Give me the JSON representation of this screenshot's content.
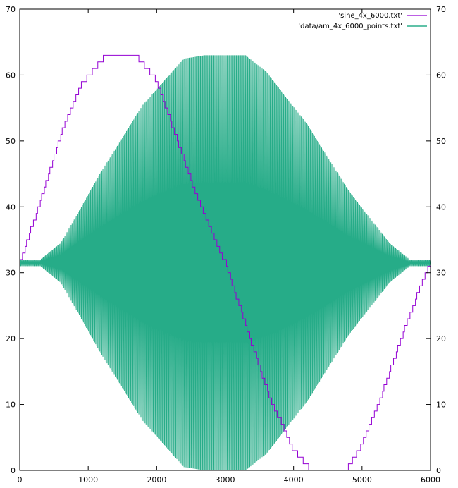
{
  "chart_data": {
    "type": "line",
    "title": "",
    "xlabel": "",
    "ylabel": "",
    "xlim": [
      0,
      6000
    ],
    "ylim": [
      0,
      70
    ],
    "x_ticks": [
      0,
      1000,
      2000,
      3000,
      4000,
      5000,
      6000
    ],
    "y_ticks": [
      0,
      10,
      20,
      30,
      40,
      50,
      60,
      70
    ],
    "y2_ticks": [
      0,
      10,
      20,
      30,
      40,
      50,
      60,
      70
    ],
    "grid": false,
    "legend_position": "top-right",
    "series": [
      {
        "name": "'sine_4x_6000.txt'",
        "color": "#9400d3",
        "description": "quantized sine wave, integer steps",
        "points": [
          [
            0,
            31.5
          ],
          [
            300,
            41
          ],
          [
            600,
            51
          ],
          [
            900,
            58.5
          ],
          [
            1250,
            63
          ],
          [
            1700,
            63
          ],
          [
            2000,
            59
          ],
          [
            2300,
            50
          ],
          [
            2600,
            41
          ],
          [
            3000,
            31.5
          ],
          [
            3300,
            22
          ],
          [
            3650,
            11
          ],
          [
            4000,
            3
          ],
          [
            4250,
            0
          ],
          [
            4750,
            0
          ],
          [
            5000,
            4
          ],
          [
            5300,
            12
          ],
          [
            5600,
            21
          ],
          [
            5850,
            28
          ],
          [
            6000,
            31.5
          ]
        ]
      },
      {
        "name": "'data/am_4x_6000_points.txt'",
        "color": "#009e73",
        "description": "amplitude modulated carrier, envelope amplitude vs x",
        "center": 31.5,
        "envelope": [
          [
            0,
            0.5
          ],
          [
            300,
            0.5
          ],
          [
            600,
            3
          ],
          [
            1200,
            14
          ],
          [
            1800,
            24
          ],
          [
            2400,
            31
          ],
          [
            2700,
            31.5
          ],
          [
            3300,
            31.5
          ],
          [
            3600,
            29
          ],
          [
            4200,
            21
          ],
          [
            4800,
            11
          ],
          [
            5400,
            3
          ],
          [
            5700,
            0.5
          ],
          [
            6000,
            0.5
          ]
        ]
      }
    ]
  }
}
